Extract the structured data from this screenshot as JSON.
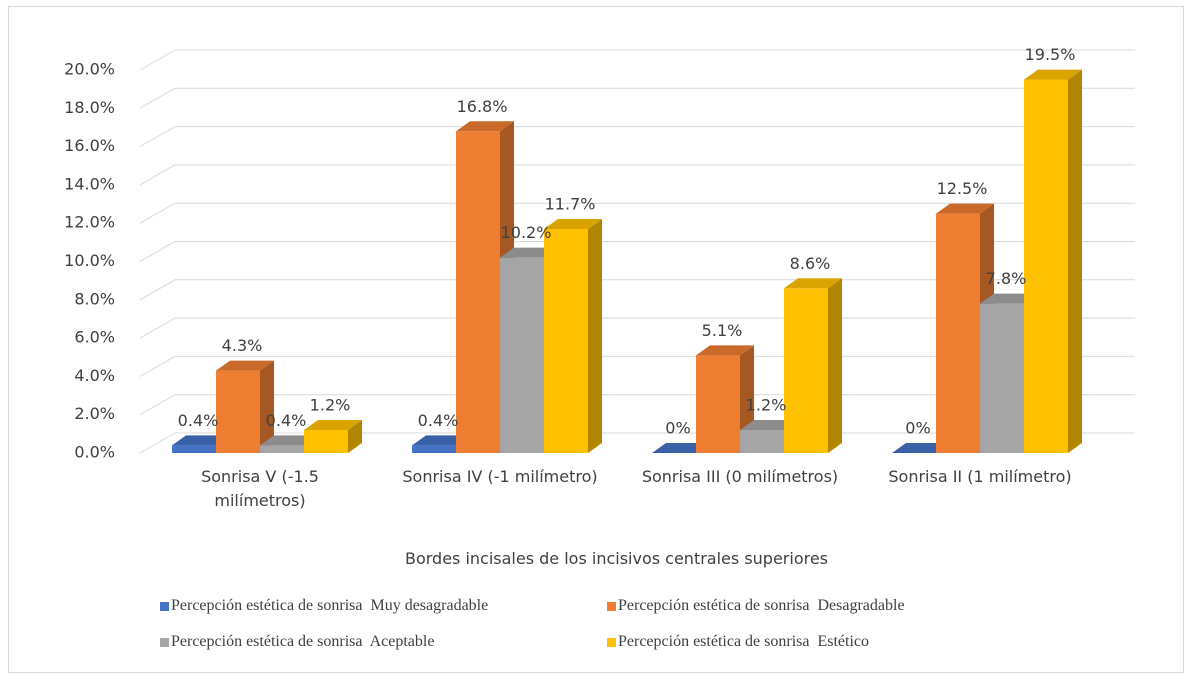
{
  "chart_data": {
    "type": "bar",
    "x_label": "Bordes incisales de los incisivos centrales superiores",
    "categories": [
      "Sonrisa V (-1.5 milímetros)",
      "Sonrisa IV (-1 milímetro)",
      "Sonrisa III (0 milímetros)",
      "Sonrisa II (1 milímetro)"
    ],
    "series": [
      {
        "name": "Percepción estética de sonrisa  Muy desagradable",
        "color": "#4472c4",
        "values": [
          0.4,
          0.4,
          0,
          0
        ],
        "value_labels": [
          "0.4%",
          "0.4%",
          "0%",
          "0%"
        ]
      },
      {
        "name": "Percepción estética de sonrisa  Desagradable",
        "color": "#ed7d31",
        "values": [
          4.3,
          16.8,
          5.1,
          12.5
        ],
        "value_labels": [
          "4.3%",
          "16.8%",
          "5.1%",
          "12.5%"
        ]
      },
      {
        "name": "Percepción estética de sonrisa  Aceptable",
        "color": "#a5a5a5",
        "values": [
          0.4,
          10.2,
          1.2,
          7.8
        ],
        "value_labels": [
          "0.4%",
          "10.2%",
          "1.2%",
          "7.8%"
        ]
      },
      {
        "name": "Percepción estética de sonrisa  Estético",
        "color": "#ffc000",
        "values": [
          1.2,
          11.7,
          8.6,
          19.5
        ],
        "value_labels": [
          "1.2%",
          "11.7%",
          "8.6%",
          "19.5%"
        ]
      }
    ],
    "ylim": [
      0,
      20
    ],
    "yticks": [
      {
        "value": 0,
        "label": "0.0%"
      },
      {
        "value": 2,
        "label": "2.0%"
      },
      {
        "value": 4,
        "label": "4.0%"
      },
      {
        "value": 6,
        "label": "6.0%"
      },
      {
        "value": 8,
        "label": "8.0%"
      },
      {
        "value": 10,
        "label": "10.0%"
      },
      {
        "value": 12,
        "label": "12.0%"
      },
      {
        "value": 14,
        "label": "14.0%"
      },
      {
        "value": 16,
        "label": "16.0%"
      },
      {
        "value": 18,
        "label": "18.0%"
      },
      {
        "value": 20,
        "label": "20.0%"
      }
    ],
    "grid": true,
    "legend": "bottom"
  }
}
